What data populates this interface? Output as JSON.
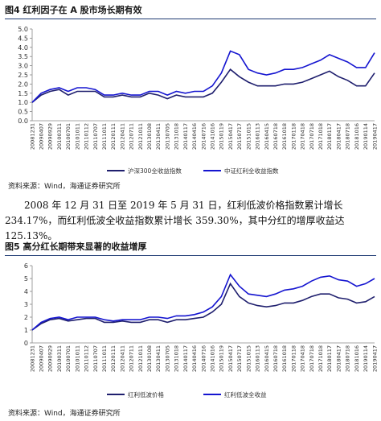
{
  "chart_data": [
    {
      "type": "line",
      "title": "图4 红利因子在 A 股市场长期有效",
      "source": "资料来源：Wind，海通证券研究所",
      "categories": [
        "20081231",
        "20090407",
        "20090929",
        "20100311",
        "20100701",
        "20101011",
        "20110112",
        "20110707",
        "20111011",
        "20120111",
        "20120411",
        "20120711",
        "20121011",
        "20130108",
        "20130411",
        "20130705",
        "20131018",
        "20140117",
        "20140416",
        "20140716",
        "20141016",
        "20150119",
        "20150417",
        "20150717",
        "20151015",
        "20160113",
        "20160415",
        "20160718",
        "20161018",
        "20170118",
        "20170418",
        "20170718",
        "20171018",
        "20180117",
        "20180417",
        "20180718",
        "20181016",
        "20190114",
        "20190417"
      ],
      "series": [
        {
          "name": "沪深300全收益指数",
          "color": "#1f1f6e",
          "values": [
            1.0,
            1.4,
            1.6,
            1.7,
            1.4,
            1.6,
            1.6,
            1.6,
            1.3,
            1.3,
            1.4,
            1.3,
            1.3,
            1.5,
            1.4,
            1.2,
            1.4,
            1.3,
            1.3,
            1.3,
            1.5,
            2.1,
            2.8,
            2.4,
            2.1,
            1.9,
            1.9,
            1.9,
            2.0,
            2.0,
            2.1,
            2.3,
            2.5,
            2.7,
            2.4,
            2.2,
            1.9,
            1.9,
            2.6
          ]
        },
        {
          "name": "中证红利全收益指数",
          "color": "#1515d0",
          "values": [
            1.0,
            1.5,
            1.7,
            1.8,
            1.6,
            1.8,
            1.8,
            1.7,
            1.4,
            1.4,
            1.5,
            1.4,
            1.4,
            1.6,
            1.6,
            1.4,
            1.6,
            1.5,
            1.6,
            1.6,
            1.9,
            2.6,
            3.8,
            3.6,
            2.8,
            2.6,
            2.5,
            2.6,
            2.8,
            2.8,
            2.9,
            3.1,
            3.3,
            3.6,
            3.4,
            3.2,
            2.9,
            2.9,
            3.7
          ]
        }
      ],
      "ylim": [
        0,
        5
      ],
      "yticks": [
        {
          "value": 0,
          "label": "0.0"
        },
        0.5,
        {
          "value": 1,
          "label": "1.0"
        },
        1.5,
        {
          "value": 2,
          "label": "2.0"
        },
        2.5,
        {
          "value": 3,
          "label": "3.0"
        },
        3.5,
        {
          "value": 4,
          "label": "4.0"
        },
        4.5,
        {
          "value": 5,
          "label": "5.0"
        }
      ],
      "grid": false
    },
    {
      "type": "line",
      "title": "图5 高分红长期带来显著的收益增厚",
      "source": "资料来源：Wind，海通证券研究所",
      "categories": [
        "20081231",
        "20090407",
        "20090929",
        "20100311",
        "20100701",
        "20101011",
        "20110112",
        "20110707",
        "20111011",
        "20120111",
        "20120411",
        "20120711",
        "20121011",
        "20130108",
        "20130411",
        "20130705",
        "20131018",
        "20140117",
        "20140416",
        "20140716",
        "20141016",
        "20150119",
        "20150417",
        "20150717",
        "20151015",
        "20160113",
        "20160415",
        "20160718",
        "20161018",
        "20170118",
        "20170418",
        "20170718",
        "20171018",
        "20180117",
        "20180417",
        "20180718",
        "20181016",
        "20190114",
        "20190417"
      ],
      "series": [
        {
          "name": "红利低波价格",
          "color": "#1f1f6e",
          "values": [
            1.0,
            1.5,
            1.8,
            1.9,
            1.7,
            1.8,
            1.9,
            1.9,
            1.6,
            1.6,
            1.7,
            1.6,
            1.6,
            1.8,
            1.8,
            1.6,
            1.8,
            1.8,
            1.9,
            2.0,
            2.4,
            3.0,
            4.6,
            3.6,
            3.1,
            2.9,
            2.8,
            2.9,
            3.1,
            3.1,
            3.3,
            3.6,
            3.8,
            3.8,
            3.5,
            3.4,
            3.1,
            3.2,
            3.6
          ]
        },
        {
          "name": "红利低波全收益",
          "color": "#1515d0",
          "values": [
            1.0,
            1.6,
            1.9,
            2.0,
            1.8,
            2.0,
            2.0,
            2.0,
            1.8,
            1.7,
            1.8,
            1.8,
            1.8,
            2.0,
            2.0,
            1.9,
            2.1,
            2.1,
            2.2,
            2.4,
            2.8,
            3.6,
            5.3,
            4.4,
            3.8,
            3.7,
            3.6,
            3.8,
            4.1,
            4.2,
            4.4,
            4.8,
            5.1,
            5.2,
            4.9,
            4.8,
            4.4,
            4.6,
            5.0
          ]
        }
      ],
      "ylim": [
        0,
        6
      ],
      "yticks": [
        0,
        1,
        2,
        3,
        4,
        5,
        6
      ],
      "grid": false
    }
  ],
  "paragraph": "2008 年 12 月 31 日至 2019 年 5 月 31 日，红利低波价格指数累计增长 234.17%，而红利低波全收益指数累计增长 359.30%，其中分红的增厚收益达 125.13%。"
}
